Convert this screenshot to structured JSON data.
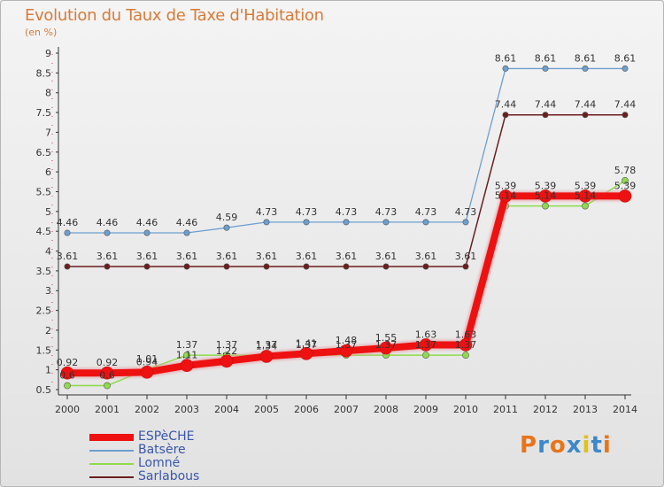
{
  "title": "Evolution du Taux de Taxe d'Habitation",
  "subtitle": "(en %)",
  "brand": {
    "letters": [
      "P",
      "r",
      "o",
      "x",
      "i",
      "t",
      "i"
    ],
    "colors": [
      "#e8741a",
      "#3d88c9",
      "#e8741a",
      "#3d88c9",
      "#e0c21a",
      "#3d88c9",
      "#e8741a"
    ]
  },
  "chart_data": {
    "type": "line",
    "x": [
      "2000",
      "2001",
      "2002",
      "2003",
      "2004",
      "2005",
      "2006",
      "2007",
      "2008",
      "2009",
      "2010",
      "2011",
      "2012",
      "2013",
      "2014"
    ],
    "ylim": [
      0.5,
      9
    ],
    "yticks": [
      "0.5",
      "1",
      "1.5",
      "2",
      "2.5",
      "3",
      "3.5",
      "4",
      "4.5",
      "5",
      "5.5",
      "6",
      "6.5",
      "7",
      "7.5",
      "8",
      "8.5",
      "9"
    ],
    "grid": false,
    "legend": "bottom-left",
    "series": [
      {
        "name": "ESPèCHE",
        "color": "#ee1111",
        "values": [
          0.92,
          0.92,
          0.94,
          1.11,
          1.22,
          1.34,
          1.41,
          1.48,
          1.55,
          1.63,
          1.63,
          5.39,
          5.39,
          5.39,
          5.39
        ],
        "labels": [
          "0.92",
          "0.92",
          "0.94",
          "1.11",
          "1.22",
          "1.34",
          "1.41",
          "1.48",
          "1.55",
          "1.63",
          "1.63",
          "5.39",
          "5.39",
          "5.39",
          "5.39"
        ]
      },
      {
        "name": "Batsère",
        "color": "#6d9fcf",
        "values": [
          4.46,
          4.46,
          4.46,
          4.46,
          4.59,
          4.73,
          4.73,
          4.73,
          4.73,
          4.73,
          4.73,
          8.61,
          8.61,
          8.61,
          8.61
        ],
        "labels": [
          "4.46",
          "4.46",
          "4.46",
          "4.46",
          "4.59",
          "4.73",
          "4.73",
          "4.73",
          "4.73",
          "4.73",
          "4.73",
          "8.61",
          "8.61",
          "8.61",
          "8.61"
        ]
      },
      {
        "name": "Lomné",
        "color": "#8fdb49",
        "values": [
          0.6,
          0.6,
          1.01,
          1.37,
          1.37,
          1.37,
          1.37,
          1.37,
          1.37,
          1.37,
          1.37,
          5.14,
          5.14,
          5.14,
          5.78
        ],
        "labels": [
          "0.6",
          "0.6",
          "1.01",
          "1.37",
          "1.37",
          "1.37",
          "1.37",
          "1.37",
          "1.37",
          "1.37",
          "1.37",
          "5.14",
          "5.14",
          "5.14",
          "5.78"
        ]
      },
      {
        "name": "Sarlabous",
        "color": "#6b1e1e",
        "values": [
          3.61,
          3.61,
          3.61,
          3.61,
          3.61,
          3.61,
          3.61,
          3.61,
          3.61,
          3.61,
          3.61,
          7.44,
          7.44,
          7.44,
          7.44
        ],
        "labels": [
          "3.61",
          "3.61",
          "3.61",
          "3.61",
          "3.61",
          "3.61",
          "3.61",
          "3.61",
          "3.61",
          "3.61",
          "3.61",
          "7.44",
          "7.44",
          "7.44",
          "7.44"
        ]
      }
    ]
  }
}
